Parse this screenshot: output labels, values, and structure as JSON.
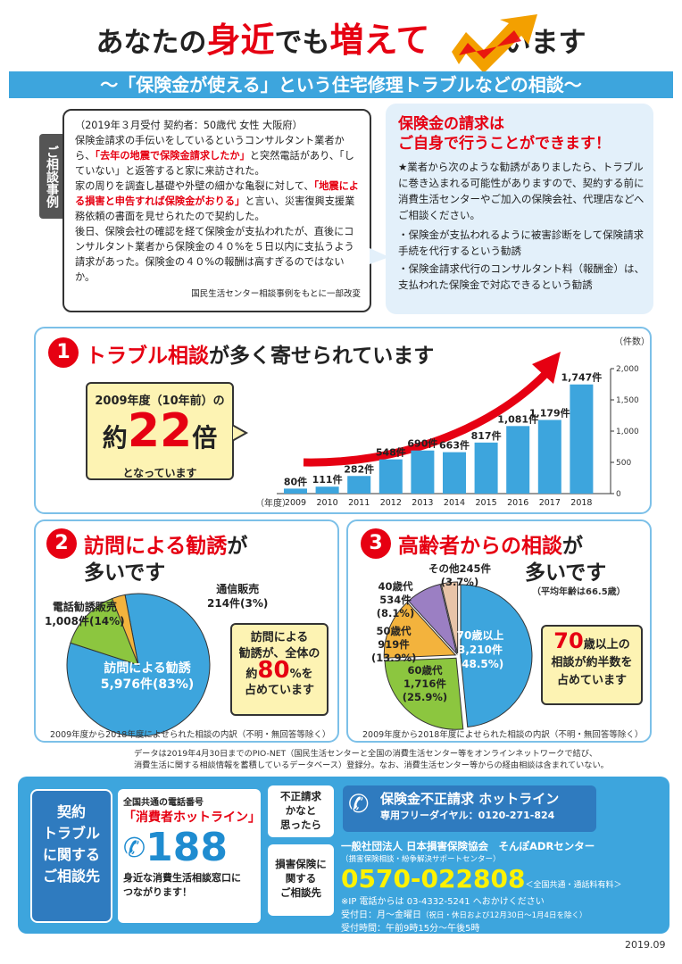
{
  "header": {
    "title_a": "あなたの",
    "title_b": "身近",
    "title_c": "でも",
    "title_d": "増えて",
    "title_e": "います",
    "subtitle": "～「保険金が使える」という住宅修理トラブルなどの相談～"
  },
  "case": {
    "tab": "ご相談事例",
    "meta": "（2019年３月受付 契約者：50歳代 女性 大阪府）",
    "p1a": "保険金請求の手伝いをしているというコンサルタント業者から、",
    "p1b": "「去年の地震で保険金請求したか」",
    "p1c": "と突然電話があり、「していない」と返答すると家に来訪された。",
    "p2a": "家の周りを調査し基礎や外壁の細かな亀裂に対して、",
    "p2b": "「地震による損害と申告すれば保険金がおりる」",
    "p2c": "と言い、災害復興支援業務依頼の書面を見せられたので契約した。",
    "p3": "後日、保険会社の確認を経て保険金が支払われたが、直後にコンサルタント業者から保険金の４０%を５日以内に支払うよう請求があった。保険金の４０%の報酬は高すぎるのではないか。",
    "source": "国民生活センター相談事例をもとに一部改変"
  },
  "advice": {
    "title1": "保険金の請求は",
    "title2": "ご自身で行うことができます！",
    "lead": "★業者から次のような勧誘がありましたら、トラブルに巻き込まれる可能性がありますので、契約する前に消費生活センターやご加入の保険会社、代理店などへご相談ください。",
    "b1": "・保険金が支払われるように被害診断をして保険請求手続を代行するという勧誘",
    "b2": "・保険金請求代行のコンサルタント料（報酬金）は、支払われた保険金で対応できるという勧誘"
  },
  "sec1": {
    "num": "1",
    "title_r": "トラブル相談",
    "title_k": "が多く寄せられています",
    "bubble_l1": "2009年度（10年前）の",
    "bubble_yaku": "約",
    "bubble_num": "22",
    "bubble_bai": "倍",
    "bubble_l3": "となっています",
    "unit": "（件数）",
    "year_label": "（年度）"
  },
  "chart_data": [
    {
      "type": "bar",
      "categories": [
        "2009",
        "2010",
        "2011",
        "2012",
        "2013",
        "2014",
        "2015",
        "2016",
        "2017",
        "2018"
      ],
      "values": [
        80,
        111,
        282,
        548,
        690,
        663,
        817,
        1081,
        1179,
        1747
      ],
      "value_labels": [
        "80件",
        "111件",
        "282件",
        "548件",
        "690件",
        "663件",
        "817件",
        "1,081件",
        "1,179件",
        "1,747件"
      ],
      "ylim": [
        0,
        2000
      ],
      "yticks": [
        "0",
        "500",
        "1,000",
        "1,500",
        "2,000"
      ],
      "colors": {
        "bar": "#3da5dd",
        "arrow": "#e60012"
      }
    },
    {
      "type": "pie",
      "labels": [
        "訪問による勧誘",
        "電話勧誘販売",
        "通信販売"
      ],
      "values": [
        83,
        14,
        3
      ],
      "value_labels": [
        "5,976件(83%)",
        "1,008件(14%)",
        "214件(3%)"
      ],
      "colors": [
        "#3da5dd",
        "#8cc63f",
        "#f3b33d"
      ]
    },
    {
      "type": "pie",
      "labels": [
        "70歳以上",
        "60歳代",
        "50歳代",
        "40歳代",
        "その他"
      ],
      "values": [
        48.5,
        25.9,
        13.9,
        8.1,
        3.7
      ],
      "value_labels": [
        "3,210件\n(48.5%)",
        "1,716件\n(25.9%)",
        "919件\n(13.9%)",
        "534件\n(8.1%)",
        "245件\n(3.7%)"
      ],
      "colors": [
        "#3da5dd",
        "#8cc63f",
        "#f3b33d",
        "#9b7fc3",
        "#e8c4a8"
      ]
    }
  ],
  "sec2": {
    "num": "2",
    "title_r": "訪問による勧誘",
    "title_k1": "が",
    "title_k2": "多いです",
    "lbl_visit": "訪問による勧誘",
    "lbl_visit_v": "5,976件(83%)",
    "lbl_phone": "電話勧誘販売",
    "lbl_phone_v": "1,008件(14%)",
    "lbl_mail": "通信販売",
    "lbl_mail_v": "214件(3%)",
    "bubble_l1": "訪問による",
    "bubble_l2": "勧誘が、全体の",
    "bubble_yaku": "約",
    "bubble_num": "80",
    "bubble_pct": "%を",
    "bubble_l4": "占めています",
    "note": "2009年度から2018年度によせられた相談の内訳（不明・無回答等除く）"
  },
  "sec3": {
    "num": "3",
    "title_r": "高齢者からの相談",
    "title_k1": "が",
    "title_k2": "多いです",
    "avg": "（平均年齢は66.5歳）",
    "l70": "70歳以上",
    "l70v": "3,210件",
    "l70p": "(48.5%)",
    "l60": "60歳代",
    "l60v": "1,716件",
    "l60p": "(25.9%)",
    "l50": "50歳代",
    "l50v": "919件",
    "l50p": "(13.9%)",
    "l40": "40歳代",
    "l40v": "534件",
    "l40p": "(8.1%)",
    "lo": "その他245件",
    "lop": "(3.7%)",
    "bubble_num": "70",
    "bubble_l1": "歳以上の",
    "bubble_l2": "相談が約半数を",
    "bubble_l3": "占めています",
    "note": "2009年度から2018年度によせられた相談の内訳（不明・無回答等除く）"
  },
  "datanote": {
    "l1": "データは2019年4月30日までのPIO-NET（国民生活センターと全国の消費生活センター等をオンラインネットワークで結び、",
    "l2": "消費生活に関する相談情報を蓄積しているデータベース）登録分。なお、消費生活センター等からの経由相談は含まれていない。"
  },
  "footer": {
    "box_title": "契約\nトラブル\nに関する\nご相談先",
    "common": "全国共通の電話番号",
    "hotline": "「消費者ホットライン」",
    "num188": "188",
    "near1": "身近な消費生活相談窓口に",
    "near2": "つながります！",
    "fraud_q": "不正請求\nかなと\n思ったら",
    "fraud_title": "保険金不正請求 ホットライン",
    "fraud_tel": "専用フリーダイヤル：0120-271-824",
    "ins_q": "損害保険に\n関する\nご相談先",
    "org": "一般社団法人 日本損害保険協会　そんぽADRセンター",
    "org_sub": "（損害保険相談・紛争解決サポートセンター）",
    "ins_tel": "0570-022808",
    "ins_tel_note": "＜全国共通・通話料有料＞",
    "ip": "※IP 電話からは 03-4332-5241 へおかけください",
    "days": "受付日：月～金曜日",
    "days_note": "（祝日・休日および12月30日～1月4日を除く）",
    "hours": "受付時間：午前9時15分～午後5時",
    "date": "2019.09"
  }
}
